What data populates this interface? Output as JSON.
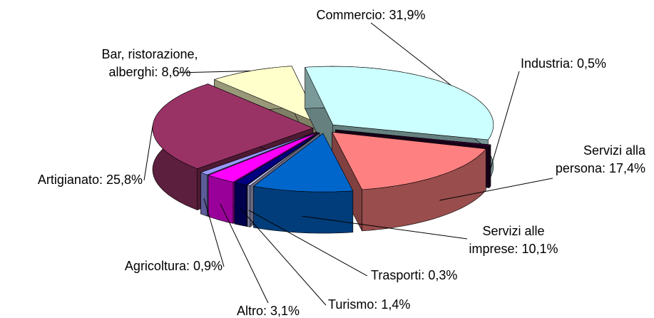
{
  "chart_data": {
    "type": "pie3d",
    "values": [
      31.9,
      0.5,
      17.4,
      10.1,
      0.3,
      1.4,
      3.1,
      0.9,
      25.8,
      8.6
    ],
    "value_labels": [
      "Commercio: 31,9%",
      "Industria: 0,5%",
      "Servizi alla\npersona: 17,4%",
      "Servizi alle\nimprese: 10,1%",
      "Trasporti: 0,3%",
      "Turismo: 1,4%",
      "Altro: 3,1%",
      "Agricoltura: 0,9%",
      "Artigianato: 25,8%",
      "Bar, ristorazione,\nalberghi: 8,6%"
    ],
    "colors": [
      "#ccffff",
      "#330033",
      "#ff8080",
      "#0066cc",
      "#ccccff",
      "#000080",
      "#ff00ff",
      "#9999ff",
      "#993366",
      "#ffffcc"
    ]
  }
}
